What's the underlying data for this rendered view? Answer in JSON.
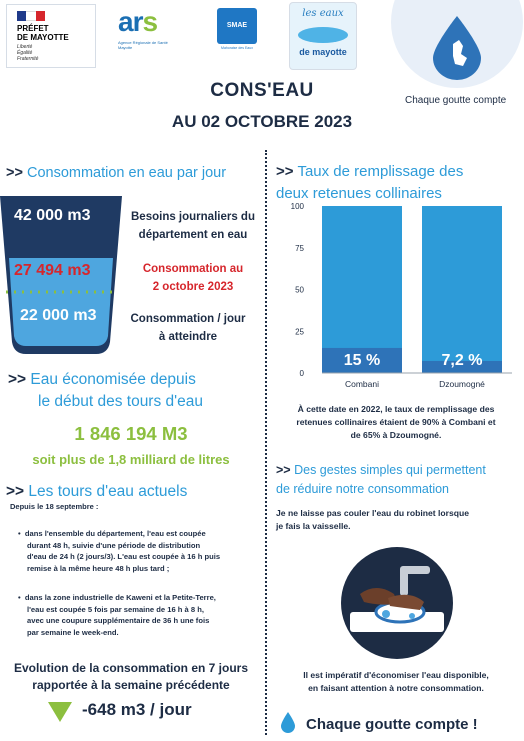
{
  "header": {
    "prefet": {
      "line1": "PRÉFET",
      "line2": "DE MAYOTTE",
      "motto": [
        "Liberté",
        "Égalité",
        "Fraternité"
      ]
    },
    "ars": {
      "logo": "ars",
      "sub": "Agence Régionale de Santé Mayotte"
    },
    "smae": {
      "logo": "SMAE",
      "sub": "Mahoraise des Eaux"
    },
    "eaux": {
      "line1": "les eaux",
      "line2": "de mayotte"
    },
    "slogan": "Chaque goutte compte"
  },
  "title": {
    "line1": "CONS'EAU",
    "line2": "AU 02 OCTOBRE 2023"
  },
  "consommation": {
    "chevrons": ">>",
    "title": "Consommation en eau par jour",
    "besoins_value": "42 000 m3",
    "besoins_label": [
      "Besoins journaliers du",
      "département en eau"
    ],
    "conso_value": "27 494 m3",
    "conso_label": [
      "Consommation au",
      "2 octobre 2023"
    ],
    "cible_value": "22 000 m3",
    "cible_label": [
      "Consommation / jour",
      "à atteindre"
    ]
  },
  "economisee": {
    "chevrons": ">>",
    "title": [
      "Eau économisée depuis",
      "le début des tours d'eau"
    ],
    "value": "1 846 194 M3",
    "sub": "soit plus de 1,8 milliard de litres"
  },
  "tours": {
    "chevrons": ">>",
    "title": "Les tours d'eau actuels",
    "since": "Depuis le 18 septembre :",
    "bullet1": [
      "dans l'ensemble du département, l'eau est coupée",
      "durant 48 h, suivie d'une période de distribution",
      "d'eau de 24 h (2 jours/3). L'eau est coupée à 16 h puis",
      "remise à la même heure 48 h plus tard ;"
    ],
    "bullet2": [
      "dans la zone industrielle de Kaweni et la Petite-Terre,",
      "l'eau est coupée 5 fois par semaine de 16 h à 8 h,",
      "avec une coupure supplémentaire de 36 h une fois",
      "par semaine le week-end."
    ]
  },
  "evolution": {
    "title": [
      "Evolution de la consommation en 7 jours",
      "rapportée à la semaine précédente"
    ],
    "value": "-648 m3 / jour"
  },
  "taux": {
    "chevrons": ">>",
    "title": [
      "Taux de remplissage des",
      "deux retenues collinaires"
    ],
    "note": [
      "À cette date en 2022, le taux de remplissage des",
      "retenues collinaires étaient de 90% à Combani et",
      "de 65% à Dzoumogné."
    ]
  },
  "chart_data": {
    "type": "bar",
    "categories": [
      "Combani",
      "Dzoumogné"
    ],
    "values": [
      15,
      7.2
    ],
    "data_labels": [
      "15 %",
      "7,2 %"
    ],
    "yticks": [
      "0",
      "25",
      "50",
      "75",
      "100"
    ],
    "ylim": [
      0,
      100
    ],
    "colors": {
      "fill": "#2e73b8",
      "background": "#2d9bd8"
    }
  },
  "gestes": {
    "chevrons": ">>",
    "title": [
      "Des gestes simples qui permettent",
      "de réduire notre consommation"
    ],
    "text": [
      "Je ne laisse pas couler l'eau du robinet lorsque",
      "je fais la vaisselle."
    ],
    "bottom": [
      "Il est impératif d'économiser l'eau disponible,",
      "en faisant attention à notre consommation."
    ],
    "slogan": "Chaque goutte compte !"
  },
  "colors": {
    "navy": "#1d2c44",
    "blue": "#2d9bd8",
    "green": "#8cbf3f",
    "red": "#d6262c"
  }
}
